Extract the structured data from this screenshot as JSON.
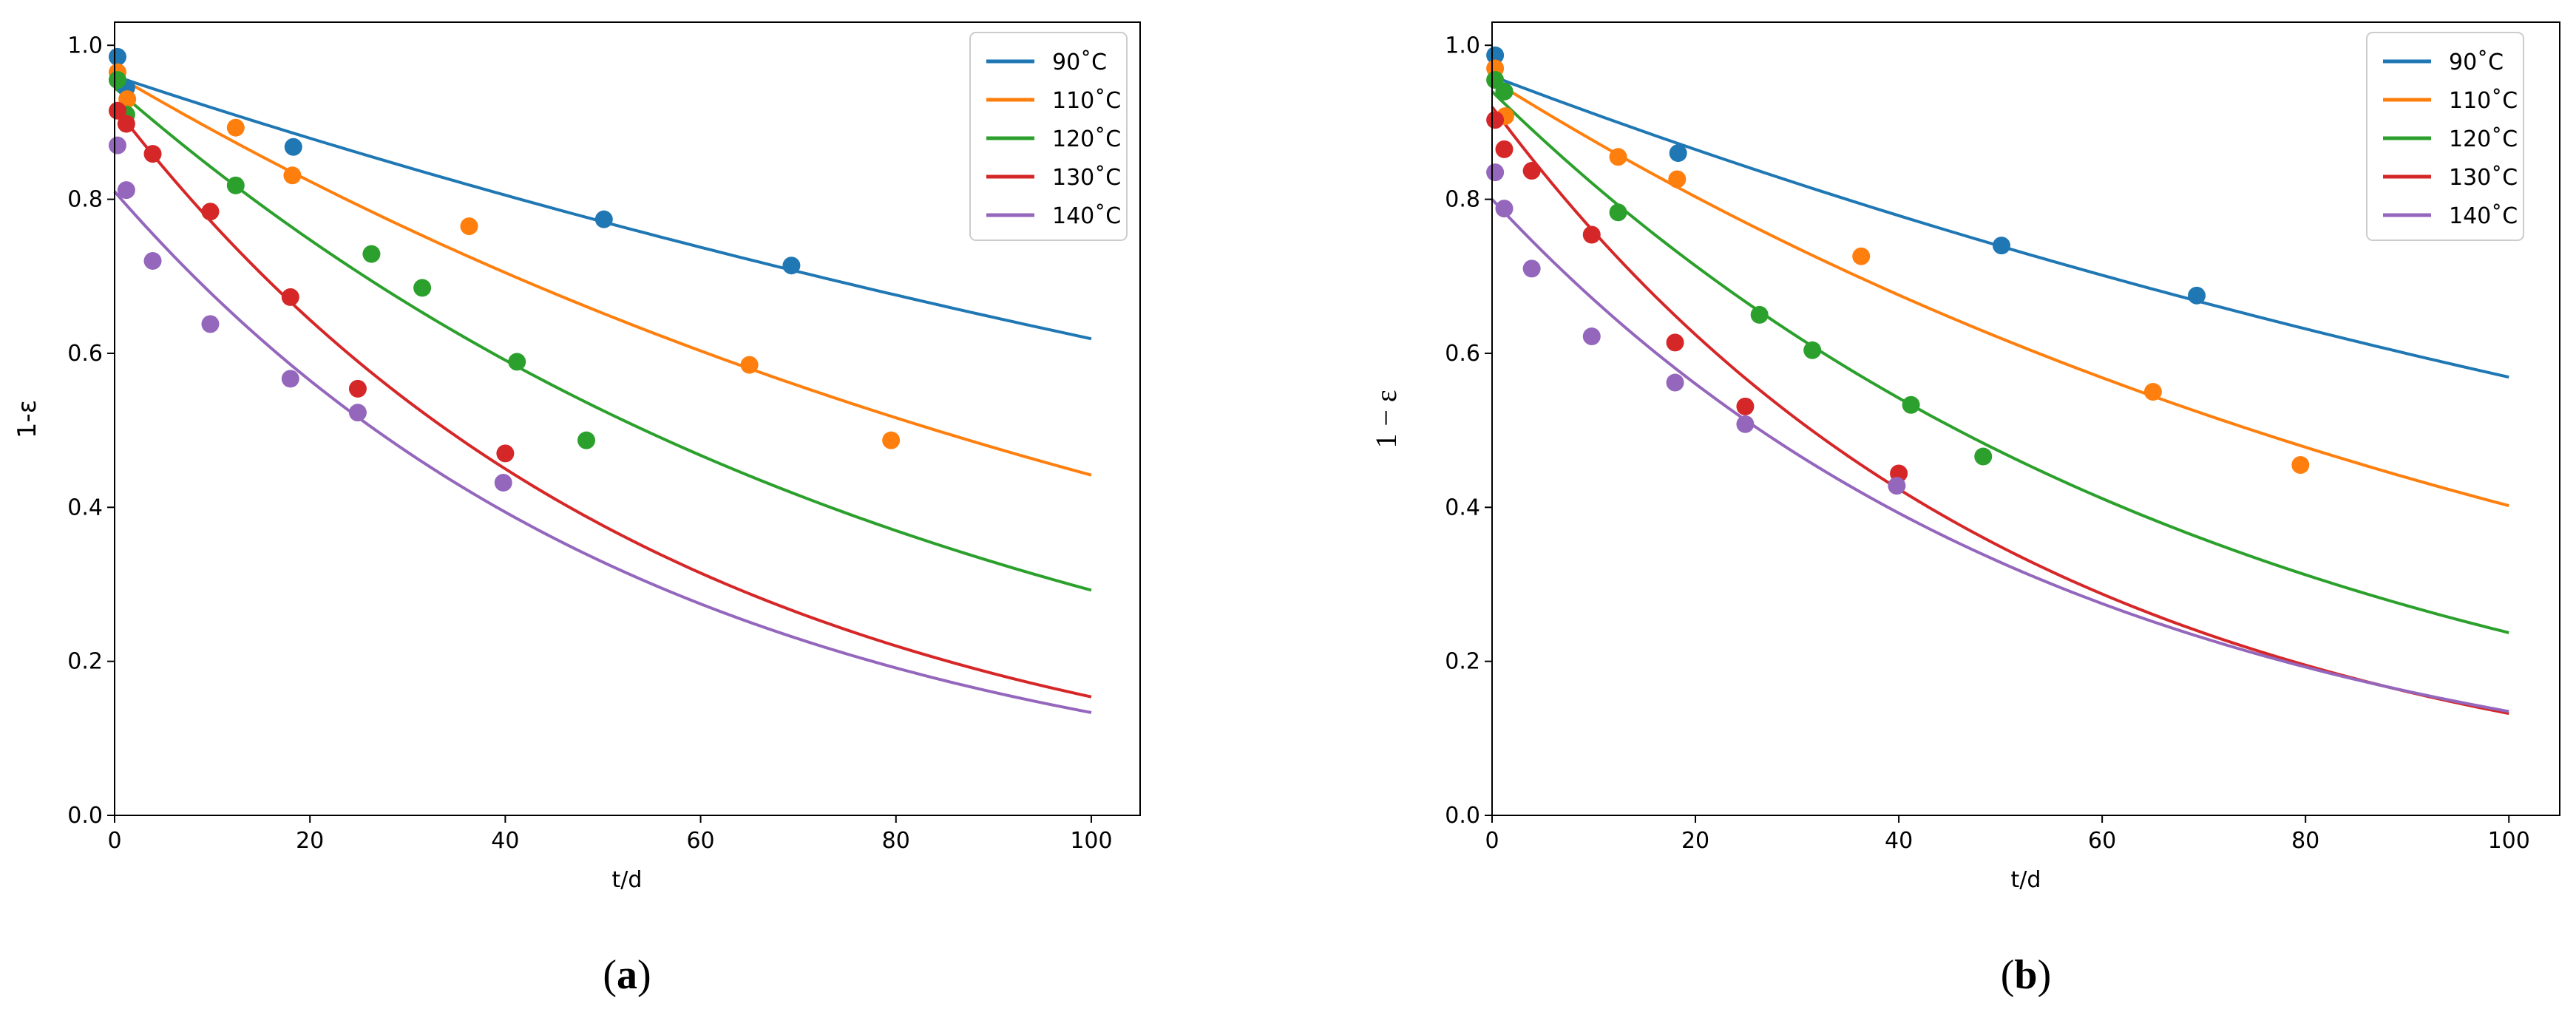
{
  "chart_data": [
    {
      "type": "line",
      "panel_label": "(a)",
      "panel_letter": "a",
      "title": "",
      "xlabel": "t/d",
      "ylabel": "1-ε",
      "xlim": [
        0,
        105
      ],
      "ylim": [
        0,
        1.03
      ],
      "xticks": [
        0,
        20,
        40,
        60,
        80,
        100
      ],
      "yticks": [
        0.0,
        0.2,
        0.4,
        0.6,
        0.8,
        1.0
      ],
      "xtick_labels": [
        "0",
        "20",
        "40",
        "60",
        "80",
        "100"
      ],
      "ytick_labels": [
        "0.0",
        "0.2",
        "0.4",
        "0.6",
        "0.8",
        "1.0"
      ],
      "grid": false,
      "legend": "top-right",
      "series": [
        {
          "name": "90˚C",
          "color": "#1f77b4",
          "fit": {
            "a": 0.96,
            "k": 0.00439
          },
          "points": {
            "x": [
              0.3,
              1.2,
              18.3,
              50.1,
              69.3
            ],
            "y": [
              0.985,
              0.945,
              0.868,
              0.774,
              0.714
            ]
          }
        },
        {
          "name": "110˚C",
          "color": "#ff7f0e",
          "fit": {
            "a": 0.962,
            "k": 0.00778
          },
          "points": {
            "x": [
              0.3,
              1.3,
              12.4,
              18.2,
              36.3,
              65.0,
              79.5
            ],
            "y": [
              0.965,
              0.93,
              0.893,
              0.831,
              0.765,
              0.585,
              0.487
            ]
          }
        },
        {
          "name": "120˚C",
          "color": "#2ca02c",
          "fit": {
            "a": 0.945,
            "k": 0.01173
          },
          "points": {
            "x": [
              0.3,
              1.2,
              12.4,
              26.3,
              31.5,
              41.2,
              48.3
            ],
            "y": [
              0.955,
              0.91,
              0.818,
              0.729,
              0.685,
              0.589,
              0.487
            ]
          }
        },
        {
          "name": "130˚C",
          "color": "#d62728",
          "fit": {
            "a": 0.92,
            "k": 0.01788
          },
          "points": {
            "x": [
              0.3,
              1.2,
              3.9,
              9.8,
              18.0,
              24.9,
              40.0
            ],
            "y": [
              0.915,
              0.898,
              0.859,
              0.784,
              0.673,
              0.554,
              0.47
            ]
          }
        },
        {
          "name": "140˚C",
          "color": "#9467bd",
          "fit": {
            "a": 0.81,
            "k": 0.01803
          },
          "points": {
            "x": [
              0.3,
              1.2,
              3.9,
              9.8,
              18.0,
              24.9,
              39.8
            ],
            "y": [
              0.87,
              0.812,
              0.72,
              0.638,
              0.567,
              0.523,
              0.432
            ]
          }
        }
      ]
    },
    {
      "type": "line",
      "panel_label": "(b)",
      "panel_letter": "b",
      "title": "",
      "xlabel": "t/d",
      "ylabel": "1 − ε",
      "xlim": [
        0,
        105
      ],
      "ylim": [
        0,
        1.03
      ],
      "xticks": [
        0,
        20,
        40,
        60,
        80,
        100
      ],
      "yticks": [
        0.0,
        0.2,
        0.4,
        0.6,
        0.8,
        1.0
      ],
      "xtick_labels": [
        "0",
        "20",
        "40",
        "60",
        "80",
        "100"
      ],
      "ytick_labels": [
        "0.0",
        "0.2",
        "0.4",
        "0.6",
        "0.8",
        "1.0"
      ],
      "grid": false,
      "legend": "top-right",
      "series": [
        {
          "name": "90˚C",
          "color": "#1f77b4",
          "fit": {
            "a": 0.96,
            "k": 0.00523
          },
          "points": {
            "x": [
              0.3,
              1.2,
              18.3,
              50.1,
              69.3
            ],
            "y": [
              0.987,
              0.94,
              0.86,
              0.74,
              0.675
            ]
          }
        },
        {
          "name": "110˚C",
          "color": "#ff7f0e",
          "fit": {
            "a": 0.955,
            "k": 0.00865
          },
          "points": {
            "x": [
              0.3,
              1.3,
              12.4,
              18.2,
              36.3,
              65.0,
              79.5
            ],
            "y": [
              0.97,
              0.908,
              0.855,
              0.826,
              0.726,
              0.55,
              0.455
            ]
          }
        },
        {
          "name": "120˚C",
          "color": "#2ca02c",
          "fit": {
            "a": 0.94,
            "k": 0.01377
          },
          "points": {
            "x": [
              0.3,
              1.2,
              12.4,
              26.3,
              31.5,
              41.2,
              48.3
            ],
            "y": [
              0.955,
              0.94,
              0.783,
              0.65,
              0.604,
              0.533,
              0.466
            ]
          }
        },
        {
          "name": "130˚C",
          "color": "#d62728",
          "fit": {
            "a": 0.92,
            "k": 0.01939
          },
          "points": {
            "x": [
              0.3,
              1.2,
              3.9,
              9.8,
              18.0,
              24.9,
              40.0
            ],
            "y": [
              0.903,
              0.865,
              0.837,
              0.754,
              0.614,
              0.531,
              0.444
            ]
          }
        },
        {
          "name": "140˚C",
          "color": "#9467bd",
          "fit": {
            "a": 0.8,
            "k": 0.0178
          },
          "points": {
            "x": [
              0.3,
              1.2,
              3.9,
              9.8,
              18.0,
              24.9,
              39.8
            ],
            "y": [
              0.835,
              0.788,
              0.71,
              0.622,
              0.562,
              0.508,
              0.428
            ]
          }
        }
      ]
    }
  ]
}
